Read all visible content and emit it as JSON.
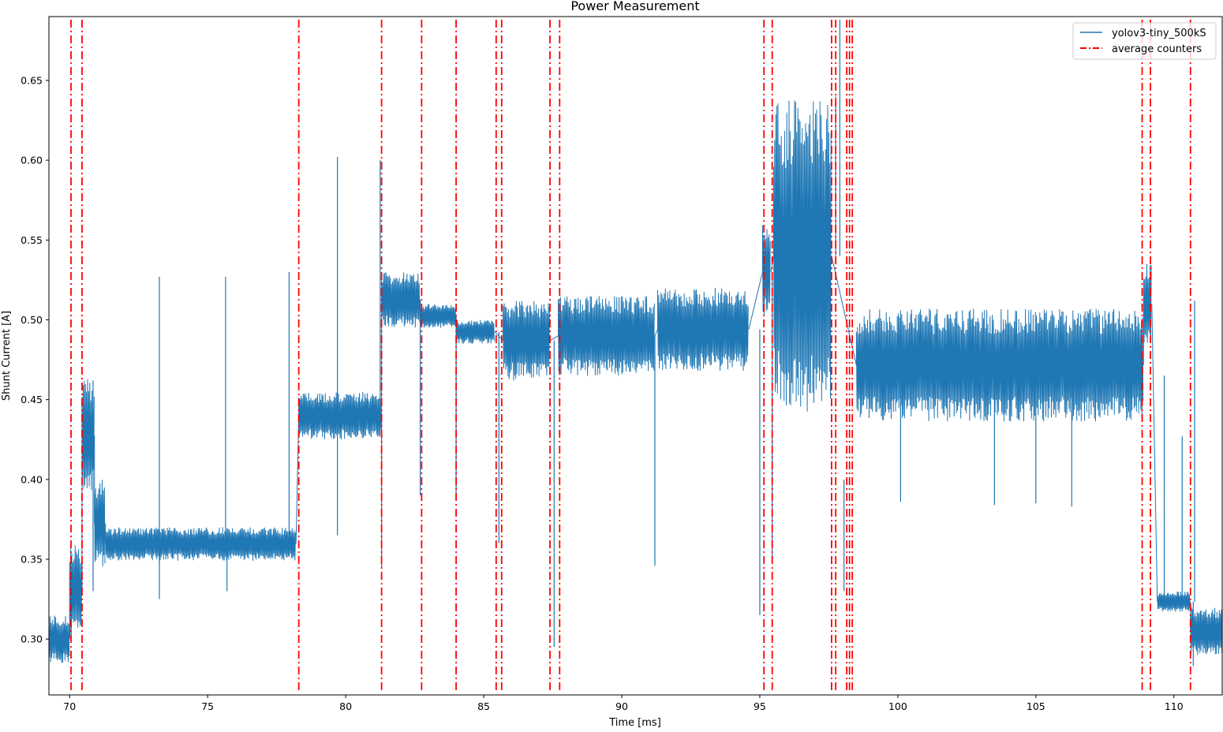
{
  "chart_data": {
    "type": "line",
    "title": "Power Measurement",
    "xlabel": "Time [ms]",
    "ylabel": "Shunt Current [A]",
    "xlim": [
      69.25,
      111.75
    ],
    "ylim": [
      0.265,
      0.69
    ],
    "x_ticks": [
      70,
      75,
      80,
      85,
      90,
      95,
      100,
      105,
      110
    ],
    "y_ticks": [
      0.3,
      0.35,
      0.4,
      0.45,
      0.5,
      0.55,
      0.6,
      0.65
    ],
    "x_tick_labels": [
      "70",
      "75",
      "80",
      "85",
      "90",
      "95",
      "100",
      "105",
      "110"
    ],
    "y_tick_labels": [
      "0.30",
      "0.35",
      "0.40",
      "0.45",
      "0.50",
      "0.55",
      "0.60",
      "0.65"
    ],
    "grid": false,
    "legend_position": "top-right",
    "series": [
      {
        "name": "yolov3-tiny_500kS",
        "color": "#1f77b4",
        "style": "solid",
        "segments": [
          {
            "x0": 69.25,
            "x1": 70.0,
            "min": 0.285,
            "max": 0.315
          },
          {
            "x0": 70.0,
            "x1": 70.45,
            "min": 0.3,
            "max": 0.36
          },
          {
            "x0": 70.45,
            "x1": 70.9,
            "min": 0.39,
            "max": 0.465
          },
          {
            "x0": 70.9,
            "x1": 71.3,
            "min": 0.345,
            "max": 0.4
          },
          {
            "x0": 71.3,
            "x1": 78.2,
            "min": 0.349,
            "max": 0.37
          },
          {
            "x0": 78.3,
            "x1": 81.3,
            "min": 0.425,
            "max": 0.455
          },
          {
            "x0": 81.3,
            "x1": 82.7,
            "min": 0.495,
            "max": 0.53
          },
          {
            "x0": 82.7,
            "x1": 84.0,
            "min": 0.495,
            "max": 0.51
          },
          {
            "x0": 84.0,
            "x1": 85.4,
            "min": 0.485,
            "max": 0.5
          },
          {
            "x0": 85.7,
            "x1": 87.4,
            "min": 0.462,
            "max": 0.512
          },
          {
            "x0": 87.7,
            "x1": 91.2,
            "min": 0.465,
            "max": 0.515
          },
          {
            "x0": 91.3,
            "x1": 94.6,
            "min": 0.468,
            "max": 0.52
          },
          {
            "x0": 95.1,
            "x1": 95.4,
            "min": 0.5,
            "max": 0.56
          },
          {
            "x0": 95.5,
            "x1": 97.6,
            "min": 0.44,
            "max": 0.64
          },
          {
            "x0": 98.5,
            "x1": 108.9,
            "min": 0.436,
            "max": 0.507
          },
          {
            "x0": 108.9,
            "x1": 109.2,
            "min": 0.485,
            "max": 0.535
          },
          {
            "x0": 109.4,
            "x1": 110.6,
            "min": 0.317,
            "max": 0.33
          },
          {
            "x0": 110.6,
            "x1": 111.75,
            "min": 0.29,
            "max": 0.32
          }
        ],
        "spikes": [
          {
            "x": 70.85,
            "y": 0.462
          },
          {
            "x": 73.25,
            "y": 0.527
          },
          {
            "x": 73.25,
            "y": 0.325
          },
          {
            "x": 75.65,
            "y": 0.527
          },
          {
            "x": 75.7,
            "y": 0.33
          },
          {
            "x": 77.95,
            "y": 0.53
          },
          {
            "x": 79.7,
            "y": 0.602
          },
          {
            "x": 79.7,
            "y": 0.365
          },
          {
            "x": 81.25,
            "y": 0.6
          },
          {
            "x": 81.3,
            "y": 0.345
          },
          {
            "x": 82.7,
            "y": 0.39
          },
          {
            "x": 84.0,
            "y": 0.39
          },
          {
            "x": 85.55,
            "y": 0.36
          },
          {
            "x": 87.55,
            "y": 0.295
          },
          {
            "x": 91.2,
            "y": 0.346
          },
          {
            "x": 95.0,
            "y": 0.315
          },
          {
            "x": 95.45,
            "y": 0.35
          },
          {
            "x": 97.75,
            "y": 0.64
          },
          {
            "x": 97.9,
            "y": 0.688
          },
          {
            "x": 98.05,
            "y": 0.33
          },
          {
            "x": 100.1,
            "y": 0.386
          },
          {
            "x": 103.5,
            "y": 0.384
          },
          {
            "x": 105.0,
            "y": 0.385
          },
          {
            "x": 106.3,
            "y": 0.383
          },
          {
            "x": 109.65,
            "y": 0.465
          },
          {
            "x": 110.3,
            "y": 0.427
          },
          {
            "x": 110.75,
            "y": 0.512
          },
          {
            "x": 110.7,
            "y": 0.283
          }
        ]
      },
      {
        "name": "average counters",
        "color": "#ff0000",
        "style": "dashdot",
        "x": [
          70.05,
          70.45,
          78.3,
          81.3,
          82.75,
          84.0,
          85.45,
          85.65,
          87.4,
          87.75,
          95.15,
          95.45,
          97.6,
          97.75,
          98.15,
          98.25,
          98.35,
          108.85,
          109.15,
          110.6
        ]
      }
    ]
  }
}
